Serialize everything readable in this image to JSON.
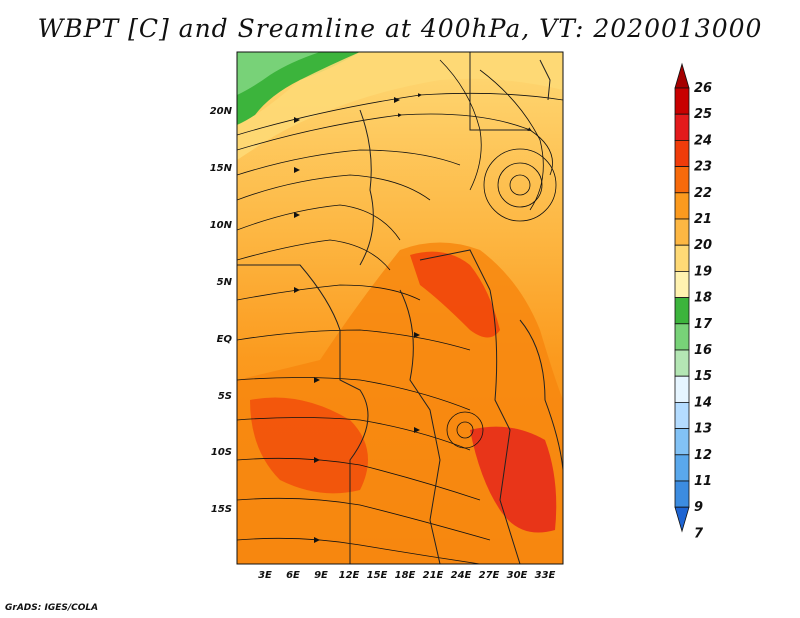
{
  "title": "WBPT [C] and Sreamline at 400hPa, VT: 2020013000",
  "footer": "GrADS: IGES/COLA",
  "map": {
    "type": "filled-contour-with-streamlines",
    "variable": "WBPT",
    "units": "C",
    "level": "400hPa",
    "lat_labels": [
      "20N",
      "15N",
      "10N",
      "5N",
      "EQ",
      "5S",
      "10S",
      "15S"
    ],
    "lon_labels": [
      "3E",
      "6E",
      "9E",
      "12E",
      "15E",
      "18E",
      "21E",
      "24E",
      "27E",
      "30E",
      "33E"
    ]
  },
  "colorbar": {
    "levels": [
      "26",
      "25",
      "24",
      "23",
      "22",
      "21",
      "20",
      "19",
      "18",
      "17",
      "16",
      "15",
      "14",
      "13",
      "12",
      "11",
      "9",
      "7"
    ],
    "colors": [
      "#a50000",
      "#c80000",
      "#e31a1c",
      "#f03c0a",
      "#f76a0b",
      "#fb9a1e",
      "#fdb743",
      "#fed976",
      "#fff2b0",
      "#3cb43c",
      "#78d278",
      "#b4e6b4",
      "#e6f5ff",
      "#b4dcff",
      "#82c2f5",
      "#5aa8ec",
      "#3c8ce0",
      "#1e64d2"
    ]
  }
}
